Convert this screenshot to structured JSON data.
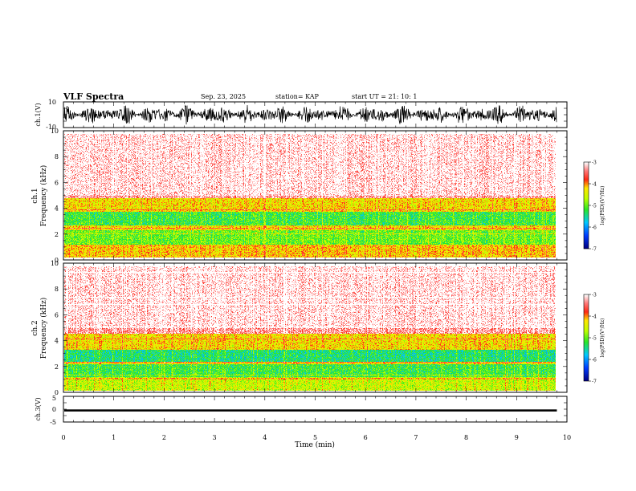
{
  "header": {
    "title": "VLF Spectra",
    "date": "Sep. 23, 2025",
    "station": "station= KAP",
    "start_ut": "start  UT =   21: 10: 1"
  },
  "chart_data": [
    {
      "type": "line",
      "name": "ch1-waveform",
      "ylabel": "ch.1(V)",
      "ylim": [
        -10,
        10
      ],
      "yticklabels": [
        "10",
        "-10"
      ],
      "xlim": [
        0,
        10
      ],
      "description_values": {
        "data_end_min": 9.8
      }
    },
    {
      "type": "heatmap",
      "name": "ch1-spectrogram",
      "ylabel": "ch.1\nFrequency  (kHz)",
      "ylabel_line1": "ch.1",
      "ylabel_line2": "Frequency  (kHz)",
      "ylim": [
        0,
        10
      ],
      "yticks": [
        0,
        2,
        4,
        6,
        8,
        10
      ],
      "xlim": [
        0,
        10
      ],
      "data_end_min": 9.8,
      "colorbar": {
        "label": "log(PSD)(V²/Hz)",
        "range": [
          -7,
          -3
        ],
        "ticks": [
          -3,
          -4,
          -5,
          -6,
          -7
        ]
      },
      "bands_khz": [
        {
          "from": 0.0,
          "to": 1.0,
          "level": -4.2
        },
        {
          "from": 1.0,
          "to": 2.2,
          "level": -5.0
        },
        {
          "from": 2.2,
          "to": 2.6,
          "level": -4.3
        },
        {
          "from": 2.6,
          "to": 3.7,
          "level": -5.2
        },
        {
          "from": 3.7,
          "to": 4.8,
          "level": -4.3
        },
        {
          "from": 4.8,
          "to": 10.0,
          "level": -3.3
        }
      ]
    },
    {
      "type": "heatmap",
      "name": "ch2-spectrogram",
      "ylabel_line1": "ch.2",
      "ylabel_line2": "Frequency  (kHz)",
      "ylim": [
        0,
        10
      ],
      "yticks": [
        0,
        2,
        4,
        6,
        8,
        10
      ],
      "xlim": [
        0,
        10
      ],
      "data_end_min": 9.8,
      "colorbar": {
        "label": "log(PSD)(V²/Hz)",
        "range": [
          -7,
          -3
        ],
        "ticks": [
          -3,
          -4,
          -5,
          -6,
          -7
        ]
      },
      "bands_khz": [
        {
          "from": 0.0,
          "to": 1.0,
          "level": -4.6
        },
        {
          "from": 1.0,
          "to": 2.1,
          "level": -5.2
        },
        {
          "from": 2.1,
          "to": 2.3,
          "level": -4.3
        },
        {
          "from": 2.3,
          "to": 3.3,
          "level": -5.4
        },
        {
          "from": 3.3,
          "to": 4.6,
          "level": -4.3
        },
        {
          "from": 4.6,
          "to": 10.0,
          "level": -3.3
        }
      ]
    },
    {
      "type": "line",
      "name": "ch3-waveform",
      "ylabel": "ch.3(V)",
      "ylim": [
        -5,
        5
      ],
      "yticks": [
        5,
        0,
        -5
      ],
      "yticklabels": [
        "5",
        "0",
        "-5"
      ],
      "xlim": [
        0,
        10
      ],
      "data_end_min": 9.8,
      "envelope_v": [
        -0.9,
        -0.1
      ]
    }
  ],
  "xaxis": {
    "label": "Time  (min)",
    "ticks": [
      0,
      1,
      2,
      3,
      4,
      5,
      6,
      7,
      8,
      9,
      10
    ],
    "ticklabels": [
      "0",
      "1",
      "2",
      "3",
      "4",
      "5",
      "6",
      "7",
      "8",
      "9",
      "10"
    ]
  }
}
